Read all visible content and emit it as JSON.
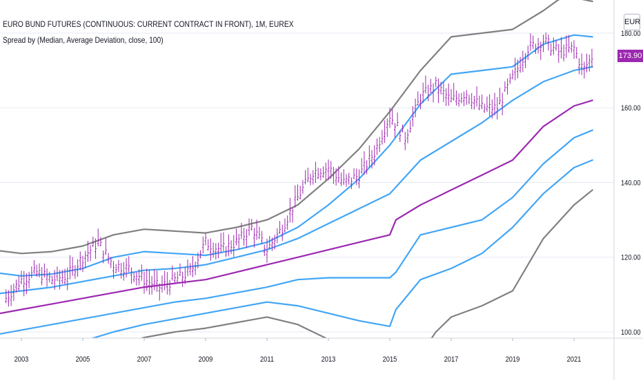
{
  "header": {
    "title": "EURO BUND FUTURES (CONTINUOUS: CURRENT CONTRACT IN FRONT), 1M, EUREX",
    "indicator": "Spread by (Median, Average Deviation, close, 100)",
    "currency": "EUR",
    "last_price": "173.90"
  },
  "colors": {
    "background": "#ffffff",
    "grid": "#e3e9f2",
    "median": "#9c27b0",
    "inner_bands": "#42a5f5",
    "outer_bands": "#808080",
    "price_bars": "#9c27b0",
    "price_badge": "#9c27b0"
  },
  "chart_data": {
    "type": "line",
    "x_axis": {
      "ticks": [
        "2003",
        "2005",
        "2007",
        "2009",
        "2011",
        "2013",
        "2015",
        "2017",
        "2019",
        "2021"
      ]
    },
    "y_axis": {
      "ticks": [
        "100.00",
        "120.00",
        "140.00",
        "160.00",
        "180.00"
      ],
      "range": [
        98,
        190
      ],
      "position": "right"
    },
    "median": {
      "x": [
        2002.0,
        2003.0,
        2004.0,
        2005.0,
        2006.0,
        2007.0,
        2008.0,
        2009.0,
        2010.0,
        2011.0,
        2012.0,
        2013.0,
        2014.0,
        2015.0,
        2015.2,
        2016.0,
        2017.0,
        2018.0,
        2019.0,
        2020.0,
        2021.0,
        2021.6
      ],
      "y": [
        104.5,
        106,
        107.5,
        109,
        110.5,
        112,
        113,
        114,
        116,
        118,
        120,
        122,
        124,
        126,
        130,
        134,
        138,
        142,
        146,
        155,
        160.5,
        162
      ]
    },
    "outer_upper": {
      "x": [
        2002.0,
        2003.0,
        2004.0,
        2005.0,
        2006.0,
        2007.0,
        2008.0,
        2009.0,
        2010.0,
        2011.0,
        2012.0,
        2013.0,
        2014.0,
        2015.0,
        2016.0,
        2017.0,
        2018.0,
        2019.0,
        2020.0,
        2020.5,
        2021.0,
        2021.6
      ],
      "y": [
        122,
        121,
        121.5,
        123,
        126,
        127.5,
        127,
        126.5,
        128,
        130,
        134,
        141,
        149,
        159,
        170,
        179,
        180,
        181,
        186,
        189,
        189.5,
        188.5
      ]
    },
    "inner_upper_2": {
      "x": [
        2002.0,
        2003.0,
        2004.0,
        2005.0,
        2006.0,
        2007.0,
        2008.0,
        2009.0,
        2010.0,
        2011.0,
        2012.0,
        2013.0,
        2014.0,
        2015.0,
        2016.0,
        2017.0,
        2018.0,
        2019.0,
        2020.0,
        2021.0,
        2021.6
      ],
      "y": [
        116,
        115,
        115.5,
        117,
        120,
        121.5,
        121,
        120.5,
        122,
        124,
        128,
        134,
        141,
        150,
        161,
        169,
        170,
        171,
        177,
        179.5,
        179
      ]
    },
    "inner_upper_1": {
      "x": [
        2002.0,
        2003.0,
        2004.0,
        2005.0,
        2006.0,
        2007.0,
        2008.0,
        2009.0,
        2010.0,
        2011.0,
        2012.0,
        2013.0,
        2014.0,
        2015.0,
        2016.0,
        2017.0,
        2018.0,
        2019.0,
        2020.0,
        2021.0,
        2021.6
      ],
      "y": [
        110,
        111,
        112,
        113.5,
        115,
        116.5,
        117,
        118,
        120,
        122,
        125,
        129,
        133,
        137,
        146,
        151,
        156,
        162,
        167,
        170,
        171
      ]
    },
    "inner_lower_1": {
      "x": [
        2002.0,
        2003.0,
        2004.0,
        2005.0,
        2006.0,
        2007.0,
        2008.0,
        2009.0,
        2010.0,
        2011.0,
        2012.0,
        2013.0,
        2014.0,
        2015.0,
        2015.2,
        2016.0,
        2017.0,
        2018.0,
        2019.0,
        2020.0,
        2021.0,
        2021.6
      ],
      "y": [
        99,
        100.5,
        102,
        103.5,
        105,
        106.5,
        108,
        109,
        110.5,
        112,
        114,
        114.5,
        114.5,
        114.5,
        116,
        126,
        128,
        130,
        136,
        145,
        152,
        154
      ]
    },
    "inner_lower_2": {
      "x": [
        2002.0,
        2003.0,
        2004.0,
        2005.0,
        2006.0,
        2007.0,
        2008.0,
        2009.0,
        2010.0,
        2011.0,
        2012.0,
        2013.0,
        2014.0,
        2015.0,
        2015.2,
        2016.0,
        2017.0,
        2018.0,
        2019.0,
        2020.0,
        2021.0,
        2021.6
      ],
      "y": [
        93,
        94.5,
        96,
        97.5,
        100,
        102,
        103.5,
        105,
        106.5,
        108,
        107,
        105,
        103,
        101.5,
        106,
        114,
        117,
        121,
        128,
        137,
        144,
        146
      ]
    },
    "outer_lower": {
      "x": [
        2002.0,
        2003.0,
        2004.0,
        2005.0,
        2006.0,
        2007.0,
        2008.0,
        2009.0,
        2010.0,
        2011.0,
        2012.0,
        2013.0,
        2014.0,
        2015.0,
        2016.0,
        2016.5,
        2017.0,
        2018.0,
        2019.0,
        2020.0,
        2021.0,
        2021.6
      ],
      "y": [
        87,
        88.5,
        90,
        92,
        96,
        98.5,
        100,
        101,
        102.5,
        104,
        102,
        98,
        95,
        92,
        94,
        100,
        104,
        107,
        111,
        125,
        134,
        138
      ]
    },
    "price": {
      "x": [
        2002.5,
        2003.0,
        2003.5,
        2004.0,
        2004.5,
        2005.0,
        2005.5,
        2006.0,
        2006.5,
        2007.0,
        2007.5,
        2008.0,
        2008.5,
        2009.0,
        2009.5,
        2010.0,
        2010.5,
        2011.0,
        2011.5,
        2012.0,
        2012.5,
        2013.0,
        2013.5,
        2014.0,
        2014.5,
        2015.0,
        2015.5,
        2016.0,
        2016.5,
        2017.0,
        2017.5,
        2018.0,
        2018.5,
        2019.0,
        2019.5,
        2020.0,
        2020.5,
        2021.0,
        2021.3,
        2021.6
      ],
      "y": [
        109,
        114,
        116,
        114,
        115,
        120,
        124,
        118,
        117,
        114,
        112,
        114,
        116,
        124,
        122,
        124,
        128,
        122,
        128,
        136,
        143,
        144,
        140,
        142,
        148,
        158,
        152,
        163,
        166,
        162,
        164,
        160,
        160,
        168,
        176,
        178,
        175,
        176,
        170,
        173.9
      ]
    }
  }
}
